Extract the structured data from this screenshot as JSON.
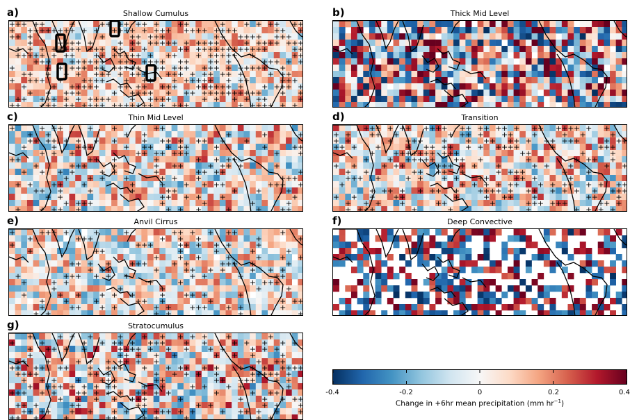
{
  "panels": [
    {
      "letter": "a)",
      "title": "Shallow Cumulus",
      "seed": 11,
      "intensity": 0.45,
      "bias": 0.35,
      "sig": 0.55,
      "blank": 0.0,
      "boxes": true
    },
    {
      "letter": "b)",
      "title": "Thick Mid Level",
      "seed": 23,
      "intensity": 1.1,
      "bias": 0.2,
      "sig": 0.0,
      "blank": 0.04,
      "boxes": false
    },
    {
      "letter": "c)",
      "title": "Thin Mid Level",
      "seed": 37,
      "intensity": 0.65,
      "bias": 0.15,
      "sig": 0.22,
      "blank": 0.0,
      "boxes": false
    },
    {
      "letter": "d)",
      "title": "Transition",
      "seed": 41,
      "intensity": 0.6,
      "bias": 0.25,
      "sig": 0.35,
      "blank": 0.0,
      "boxes": false
    },
    {
      "letter": "e)",
      "title": "Anvil Cirrus",
      "seed": 53,
      "intensity": 0.6,
      "bias": 0.05,
      "sig": 0.18,
      "blank": 0.03,
      "boxes": false
    },
    {
      "letter": "f)",
      "title": "Deep Convective",
      "seed": 67,
      "intensity": 1.6,
      "bias": 0.1,
      "sig": 0.0,
      "blank": 0.45,
      "boxes": false
    },
    {
      "letter": "g)",
      "title": "Stratocumulus",
      "seed": 79,
      "intensity": 0.7,
      "bias": 0.25,
      "sig": 0.3,
      "blank": 0.0,
      "boxes": false
    }
  ],
  "colorbar": {
    "ticks": [
      "-0.4",
      "-0.2",
      "0",
      "0.2",
      "0.4"
    ],
    "min": -0.4,
    "max": 0.4,
    "label_prefix": "Change in +6hr mean precipitation (mm hr",
    "label_sup": "−1",
    "label_suffix": ")",
    "colors": [
      "#053061",
      "#2166ac",
      "#4393c3",
      "#92c5de",
      "#d1e5f0",
      "#f7f7f7",
      "#fddbc7",
      "#f4a582",
      "#d6604d",
      "#b2182b",
      "#67001f"
    ]
  },
  "chart_data": {
    "type": "heatmap",
    "title": "",
    "xlabel": "",
    "ylabel": "",
    "colorbar_label": "Change in +6hr mean precipitation (mm hr−1)",
    "range": [
      -0.4,
      0.4
    ],
    "ticks": [
      -0.4,
      -0.2,
      0,
      0.2,
      0.4
    ],
    "panels": [
      "Shallow Cumulus",
      "Thick Mid Level",
      "Thin Mid Level",
      "Transition",
      "Anvil Cirrus",
      "Deep Convective",
      "Stratocumulus"
    ]
  }
}
